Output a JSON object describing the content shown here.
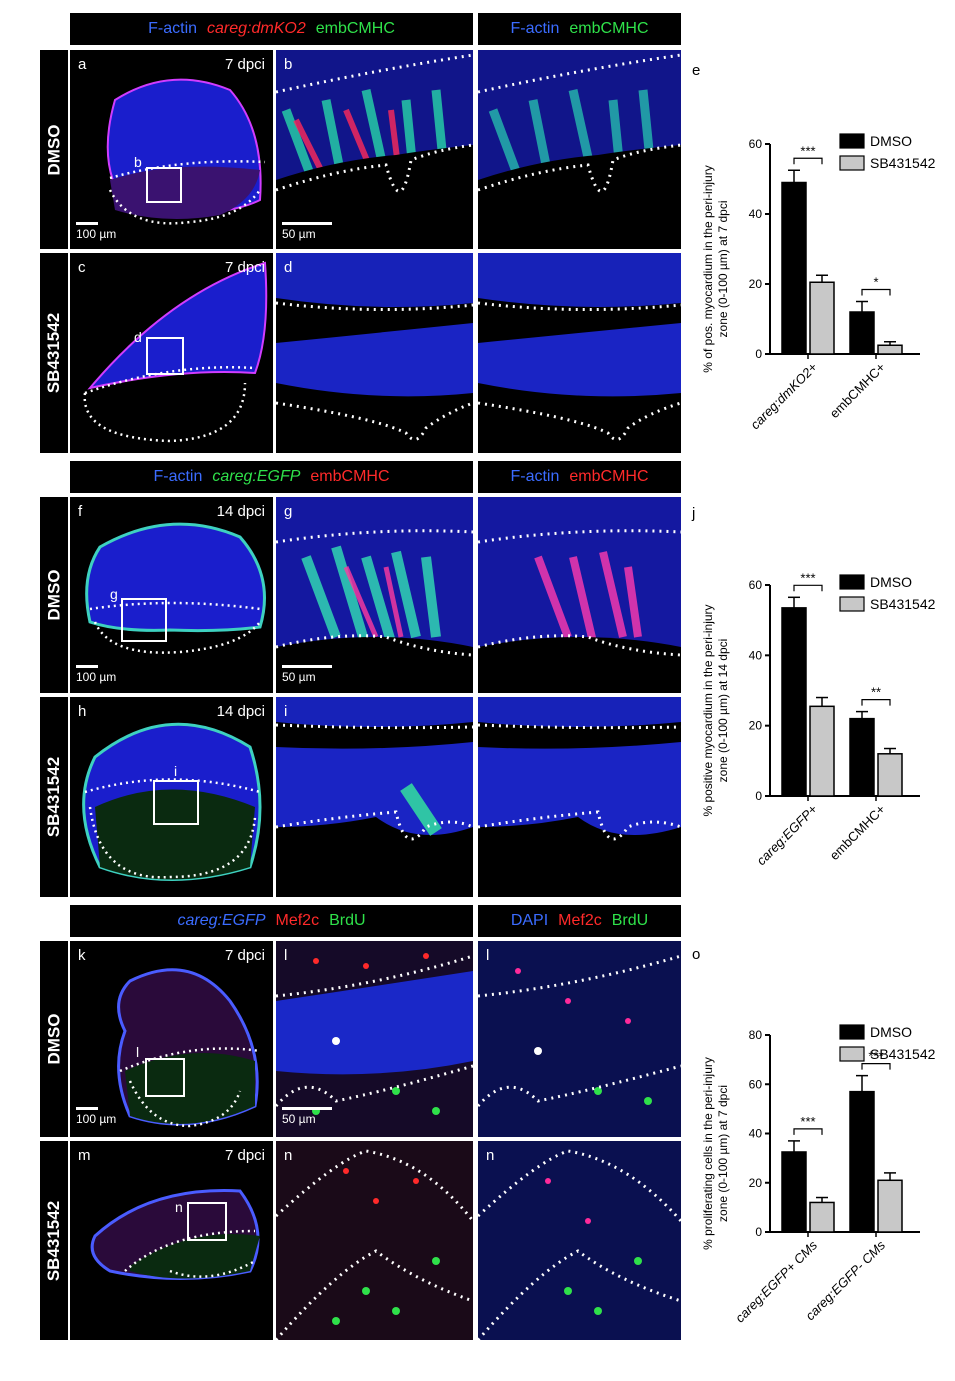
{
  "rows": [
    {
      "header_left": [
        "F-actin",
        "careg:dmKO2",
        "embCMHC"
      ],
      "header_right": [
        "F-actin",
        "embCMHC"
      ],
      "letters": [
        "a",
        "b",
        "c",
        "d"
      ],
      "dpci": "7 dpci",
      "conditions": [
        "DMSO",
        "SB431542"
      ],
      "scale_left": "100 µm",
      "scale_mid": "50 µm",
      "box_labels": [
        "b",
        "d"
      ]
    },
    {
      "header_left": [
        "F-actin",
        "careg:EGFP",
        "embCMHC"
      ],
      "header_right": [
        "F-actin",
        "embCMHC"
      ],
      "letters": [
        "f",
        "g",
        "h",
        "i"
      ],
      "dpci": "14 dpci",
      "conditions": [
        "DMSO",
        "SB431542"
      ],
      "scale_left": "100 µm",
      "scale_mid": "50 µm",
      "box_labels": [
        "g",
        "i"
      ]
    },
    {
      "header_left": [
        "careg:EGFP",
        "Mef2c",
        "BrdU"
      ],
      "header_right": [
        "DAPI",
        "Mef2c",
        "BrdU"
      ],
      "letters": [
        "k",
        "l",
        "m",
        "n"
      ],
      "right_letters": [
        "l",
        "n"
      ],
      "dpci": "7 dpci",
      "conditions": [
        "DMSO",
        "SB431542"
      ],
      "scale_left": "100 µm",
      "scale_mid": "50 µm",
      "box_labels": [
        "l",
        "n"
      ]
    }
  ],
  "chart_data": [
    {
      "panel": "e",
      "type": "bar",
      "categories": [
        "careg:dmKO2+",
        "embCMHC+"
      ],
      "series": [
        {
          "name": "DMSO",
          "values": [
            49,
            12
          ],
          "errors": [
            3.5,
            3
          ],
          "color": "#000000"
        },
        {
          "name": "SB431542",
          "values": [
            20.5,
            2.5
          ],
          "errors": [
            2,
            1
          ],
          "color": "#c8c8c8"
        }
      ],
      "significance": [
        "***",
        "*"
      ],
      "ylabel": "% of pos. myocardium in the peri-injury zone (0-100 µm) at 7 dpci",
      "ylim": [
        0,
        60
      ],
      "yticks": [
        0,
        20,
        40,
        60
      ],
      "legend": "top-right"
    },
    {
      "panel": "j",
      "type": "bar",
      "categories": [
        "careg:EGFP+",
        "embCMHC+"
      ],
      "series": [
        {
          "name": "DMSO",
          "values": [
            53.5,
            22
          ],
          "errors": [
            3,
            2
          ],
          "color": "#000000"
        },
        {
          "name": "SB431542",
          "values": [
            25.5,
            12
          ],
          "errors": [
            2.5,
            1.5
          ],
          "color": "#c8c8c8"
        }
      ],
      "significance": [
        "***",
        "**"
      ],
      "ylabel": "% positive myocardium in the peri-injury zone (0-100 µm) at 14 dpci",
      "ylim": [
        0,
        60
      ],
      "yticks": [
        0,
        20,
        40,
        60
      ],
      "legend": "top-right"
    },
    {
      "panel": "o",
      "type": "bar",
      "categories": [
        "careg:EGFP+ CMs",
        "careg:EGFP- CMs"
      ],
      "series": [
        {
          "name": "DMSO",
          "values": [
            32.5,
            57
          ],
          "errors": [
            4.5,
            6.5
          ],
          "color": "#000000"
        },
        {
          "name": "SB431542",
          "values": [
            12,
            21
          ],
          "errors": [
            2,
            3
          ],
          "color": "#c8c8c8"
        }
      ],
      "significance": [
        "***",
        "***"
      ],
      "ylabel": "% proliferating cells in the peri-injury zone (0-100 µm) at 7 dpci",
      "ylim": [
        0,
        80
      ],
      "yticks": [
        0,
        20,
        40,
        60,
        80
      ],
      "legend": "top-right"
    }
  ]
}
